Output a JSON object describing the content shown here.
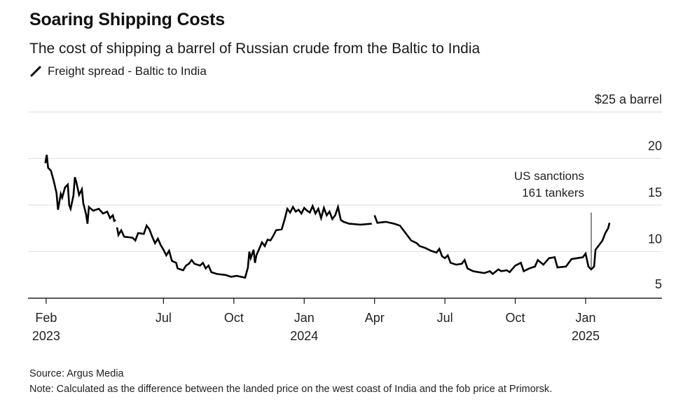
{
  "header": {
    "title": "Soaring Shipping Costs",
    "subtitle": "The cost of shipping a barrel of Russian crude from the Baltic to India",
    "legend_label": "Freight spread - Baltic to India"
  },
  "footer": {
    "source": "Source: Argus Media",
    "note": "Note: Calculated as the difference between the landed price on the west coast of India and the fob price at Primorsk."
  },
  "colors": {
    "line": "#000000",
    "grid": "#e3e3e3",
    "axis": "#222222"
  },
  "chart_data": {
    "type": "line",
    "title": "Soaring Shipping Costs",
    "subtitle": "The cost of shipping a barrel of Russian crude from the Baltic to India",
    "ylabel": "$ a barrel",
    "ylim": [
      3.6,
      25
    ],
    "y_ticks": [
      {
        "value": 25,
        "label": "$25 a barrel"
      },
      {
        "value": 20,
        "label": "20"
      },
      {
        "value": 15,
        "label": "15"
      },
      {
        "value": 10,
        "label": "10"
      },
      {
        "value": 5,
        "label": "5"
      }
    ],
    "x_domain": [
      2023.0,
      2025.25
    ],
    "x_ticks": [
      {
        "value": 2023.083,
        "label": "Feb",
        "sublabel": "2023"
      },
      {
        "value": 2023.5,
        "label": "Jul",
        "sublabel": ""
      },
      {
        "value": 2023.75,
        "label": "Oct",
        "sublabel": ""
      },
      {
        "value": 2024.0,
        "label": "Jan",
        "sublabel": "2024"
      },
      {
        "value": 2024.25,
        "label": "Apr",
        "sublabel": ""
      },
      {
        "value": 2024.5,
        "label": "Jul",
        "sublabel": ""
      },
      {
        "value": 2024.75,
        "label": "Oct",
        "sublabel": ""
      },
      {
        "value": 2025.0,
        "label": "Jan",
        "sublabel": "2025"
      }
    ],
    "annotation": {
      "x": 2025.02,
      "y": 14.2,
      "lines": [
        "US sanctions",
        "161 tankers"
      ]
    },
    "series": [
      {
        "name": "Freight spread - Baltic to India",
        "points": [
          [
            2023.08,
            19.5
          ],
          [
            2023.085,
            20.4
          ],
          [
            2023.09,
            19.0
          ],
          [
            2023.1,
            18.7
          ],
          [
            2023.11,
            17.6
          ],
          [
            2023.12,
            16.3
          ],
          [
            2023.125,
            14.5
          ],
          [
            2023.135,
            16.2
          ],
          [
            2023.14,
            15.8
          ],
          [
            2023.15,
            16.9
          ],
          [
            2023.16,
            17.2
          ],
          [
            2023.165,
            15.0
          ],
          [
            2023.17,
            14.6
          ],
          [
            2023.18,
            16.0
          ],
          [
            2023.185,
            18.0
          ],
          [
            2023.19,
            17.5
          ],
          [
            2023.2,
            16.1
          ],
          [
            2023.21,
            16.7
          ],
          [
            2023.215,
            15.2
          ],
          [
            2023.225,
            14.0
          ],
          [
            2023.23,
            13.0
          ],
          [
            2023.235,
            14.8
          ],
          [
            2023.25,
            14.4
          ],
          [
            2023.27,
            14.6
          ],
          [
            2023.285,
            14.1
          ],
          [
            2023.3,
            14.3
          ],
          [
            2023.31,
            13.6
          ],
          [
            2023.32,
            13.9
          ],
          [
            2023.325,
            13.3
          ],
          [
            2023.33,
            13.4
          ],
          [
            null,
            null
          ],
          [
            2023.335,
            12.6
          ],
          [
            2023.34,
            11.8
          ],
          [
            2023.35,
            12.3
          ],
          [
            2023.36,
            11.6
          ],
          [
            2023.39,
            11.5
          ],
          [
            2023.4,
            11.2
          ],
          [
            2023.41,
            12.0
          ],
          [
            2023.43,
            11.9
          ],
          [
            2023.44,
            12.8
          ],
          [
            2023.45,
            12.4
          ],
          [
            2023.46,
            11.6
          ],
          [
            2023.47,
            10.9
          ],
          [
            2023.48,
            11.4
          ],
          [
            2023.49,
            10.7
          ],
          [
            2023.5,
            10.2
          ],
          [
            2023.51,
            9.6
          ],
          [
            2023.52,
            10.1
          ],
          [
            2023.53,
            9.0
          ],
          [
            2023.545,
            8.8
          ],
          [
            2023.55,
            8.2
          ],
          [
            2023.57,
            8.0
          ],
          [
            2023.58,
            8.5
          ],
          [
            2023.59,
            8.7
          ],
          [
            2023.6,
            9.1
          ],
          [
            2023.61,
            8.7
          ],
          [
            2023.63,
            8.5
          ],
          [
            2023.64,
            8.8
          ],
          [
            2023.65,
            8.2
          ],
          [
            2023.66,
            8.5
          ],
          [
            2023.67,
            7.8
          ],
          [
            2023.69,
            7.6
          ],
          [
            2023.72,
            7.5
          ],
          [
            2023.74,
            7.3
          ],
          [
            2023.76,
            7.4
          ],
          [
            2023.79,
            7.2
          ],
          [
            2023.8,
            8.3
          ],
          [
            2023.805,
            10.0
          ],
          [
            2023.81,
            9.3
          ],
          [
            2023.82,
            10.2
          ],
          [
            2023.825,
            8.8
          ],
          [
            2023.83,
            9.6
          ],
          [
            2023.84,
            10.3
          ],
          [
            2023.85,
            11.0
          ],
          [
            2023.86,
            10.6
          ],
          [
            2023.87,
            11.3
          ],
          [
            2023.88,
            11.2
          ],
          [
            2023.89,
            11.7
          ],
          [
            2023.9,
            12.3
          ],
          [
            2023.92,
            12.4
          ],
          [
            2023.93,
            13.4
          ],
          [
            2023.94,
            14.6
          ],
          [
            2023.95,
            14.2
          ],
          [
            2023.96,
            14.8
          ],
          [
            2023.97,
            14.3
          ],
          [
            2023.98,
            14.5
          ],
          [
            2023.99,
            14.1
          ],
          [
            2024.0,
            14.7
          ],
          [
            2024.01,
            14.4
          ],
          [
            2024.02,
            14.2
          ],
          [
            2024.03,
            14.9
          ],
          [
            2024.04,
            14.1
          ],
          [
            2024.05,
            14.6
          ],
          [
            2024.06,
            13.6
          ],
          [
            2024.07,
            14.7
          ],
          [
            2024.08,
            13.9
          ],
          [
            2024.09,
            14.3
          ],
          [
            2024.1,
            13.5
          ],
          [
            2024.11,
            13.9
          ],
          [
            2024.12,
            14.8
          ],
          [
            2024.13,
            13.4
          ],
          [
            2024.14,
            13.2
          ],
          [
            2024.16,
            13.0
          ],
          [
            2024.2,
            12.9
          ],
          [
            2024.24,
            13.0
          ],
          [
            null,
            null
          ],
          [
            2024.25,
            13.9
          ],
          [
            2024.26,
            13.1
          ],
          [
            2024.29,
            13.2
          ],
          [
            2024.32,
            13.0
          ],
          [
            2024.34,
            12.8
          ],
          [
            2024.35,
            12.4
          ],
          [
            2024.36,
            12.0
          ],
          [
            2024.37,
            11.6
          ],
          [
            2024.38,
            11.2
          ],
          [
            2024.4,
            10.9
          ],
          [
            2024.41,
            10.6
          ],
          [
            2024.43,
            10.4
          ],
          [
            2024.45,
            10.1
          ],
          [
            2024.47,
            9.9
          ],
          [
            2024.48,
            10.3
          ],
          [
            2024.49,
            9.5
          ],
          [
            2024.5,
            9.3
          ],
          [
            2024.51,
            9.6
          ],
          [
            2024.52,
            8.8
          ],
          [
            2024.54,
            8.6
          ],
          [
            2024.56,
            8.7
          ],
          [
            2024.57,
            9.1
          ],
          [
            2024.58,
            8.2
          ],
          [
            2024.6,
            7.9
          ],
          [
            2024.62,
            7.8
          ],
          [
            2024.64,
            7.7
          ],
          [
            2024.66,
            7.9
          ],
          [
            2024.67,
            7.6
          ],
          [
            2024.69,
            8.1
          ],
          [
            2024.7,
            7.9
          ],
          [
            2024.72,
            8.0
          ],
          [
            2024.73,
            7.8
          ],
          [
            2024.75,
            8.5
          ],
          [
            2024.77,
            8.8
          ],
          [
            2024.78,
            7.9
          ],
          [
            2024.8,
            8.2
          ],
          [
            2024.82,
            8.4
          ],
          [
            2024.83,
            9.1
          ],
          [
            2024.85,
            8.6
          ],
          [
            2024.87,
            9.3
          ],
          [
            2024.89,
            9.4
          ],
          [
            2024.9,
            8.3
          ],
          [
            2024.93,
            8.4
          ],
          [
            2024.95,
            9.2
          ],
          [
            2024.97,
            9.3
          ],
          [
            2024.99,
            9.4
          ],
          [
            2025.0,
            9.8
          ],
          [
            2025.01,
            8.4
          ],
          [
            2025.02,
            8.1
          ],
          [
            2025.03,
            8.4
          ],
          [
            2025.035,
            10.2
          ],
          [
            2025.05,
            10.8
          ],
          [
            2025.06,
            11.2
          ],
          [
            2025.07,
            12.0
          ],
          [
            2025.08,
            12.5
          ],
          [
            2025.085,
            13.1
          ]
        ]
      }
    ]
  }
}
